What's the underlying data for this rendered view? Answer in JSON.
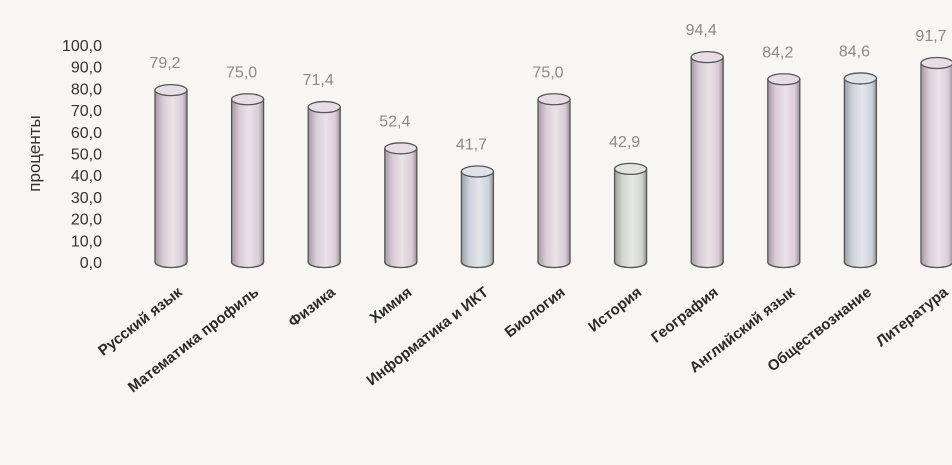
{
  "chart_data": {
    "type": "bar",
    "style": "3d-cylinder",
    "ylabel": "проценты",
    "ylim": [
      0,
      100
    ],
    "yticks": [
      "0,0",
      "10,0",
      "20,0",
      "30,0",
      "40,0",
      "50,0",
      "60,0",
      "70,0",
      "80,0",
      "90,0",
      "100,0"
    ],
    "grid": false,
    "legend": "none",
    "categories": [
      "Русский язык",
      "Математика профиль",
      "Физика",
      "Химия",
      "Информатика и ИКТ",
      "Биология",
      "История",
      "География",
      "Английский язык",
      "Обществознание",
      "Литература"
    ],
    "values": [
      79.2,
      75.0,
      71.4,
      52.4,
      41.7,
      75.0,
      42.9,
      94.4,
      84.2,
      84.6,
      91.7
    ],
    "value_labels": [
      "79,2",
      "75,0",
      "71,4",
      "52,4",
      "41,7",
      "75,0",
      "42,9",
      "94,4",
      "84,2",
      "84,6",
      "91,7"
    ],
    "colors": [
      "#d9ccd6",
      "#d9ccd6",
      "#d9ccd6",
      "#d9ccd6",
      "#cdd2db",
      "#d9ccd6",
      "#d3d5cf",
      "#d9ccd6",
      "#d9ccd6",
      "#cdd2db",
      "#d9ccd6"
    ]
  }
}
